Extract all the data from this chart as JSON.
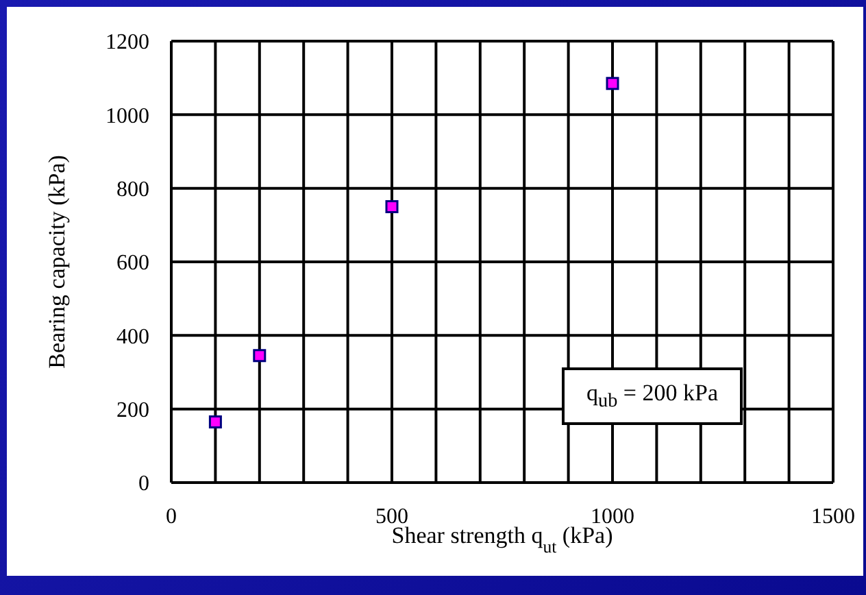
{
  "chart_data": {
    "type": "scatter",
    "xlabel": "Shear strength q$_{ut}$ (kPa)",
    "ylabel": "Bearing capacity (kPa)",
    "x": [
      100,
      200,
      500,
      1000
    ],
    "series": [
      {
        "color": "#ff00ff",
        "values": [
          165,
          345,
          750,
          1085
        ]
      }
    ],
    "xlim": [
      0,
      1500
    ],
    "xticks": [
      0,
      {
        "value": 100,
        "label": null
      },
      {
        "value": 200,
        "label": null
      },
      {
        "value": 300,
        "label": null
      },
      {
        "value": 400,
        "label": null
      },
      500,
      {
        "value": 600,
        "label": null
      },
      {
        "value": 700,
        "label": null
      },
      {
        "value": 800,
        "label": null
      },
      {
        "value": 900,
        "label": null
      },
      1000,
      {
        "value": 1100,
        "label": null
      },
      {
        "value": 1200,
        "label": null
      },
      {
        "value": 1300,
        "label": null
      },
      {
        "value": 1400,
        "label": null
      },
      1500
    ],
    "ylim": [
      0,
      1200
    ],
    "yticks": [
      0,
      200,
      400,
      600,
      800,
      1000,
      1200
    ],
    "grid": true,
    "marker": "square",
    "annotations": [
      "q$_{ub}$ = 200 kPa"
    ]
  }
}
